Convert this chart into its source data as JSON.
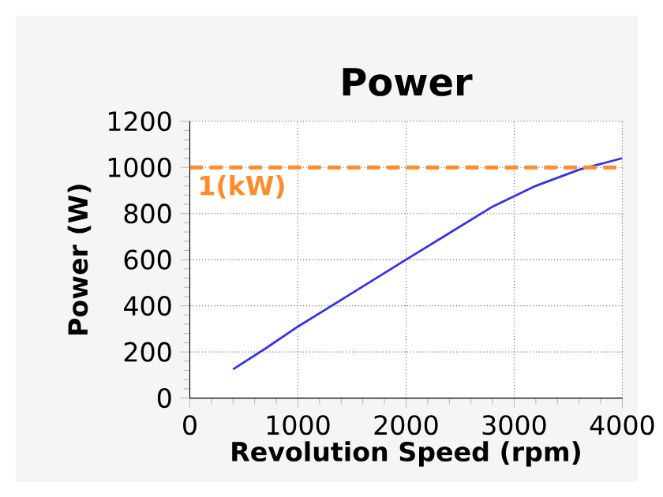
{
  "chart_data": {
    "type": "line",
    "title": "Power",
    "xlabel": "Revolution Speed (rpm)",
    "ylabel": "Power (W)",
    "x": [
      400,
      700,
      1000,
      1500,
      2000,
      2400,
      2800,
      3200,
      3600,
      4000
    ],
    "series": [
      {
        "color": "#3333ee",
        "values": [
          125,
          215,
          310,
          455,
          600,
          715,
          830,
          920,
          990,
          1040
        ]
      }
    ],
    "xlim": [
      0,
      4000
    ],
    "xticks": [
      0,
      1000,
      2000,
      3000,
      4000
    ],
    "ylim": [
      0,
      1200
    ],
    "yticks": [
      0,
      200,
      400,
      600,
      800,
      1000,
      1200
    ],
    "grid": true,
    "line_style": "solid",
    "marker": "none",
    "ref_lines": [
      {
        "axis": "y",
        "value": 1000,
        "label": "1(kW)",
        "color": "#ff8c2a",
        "line_style": "dashed"
      }
    ]
  }
}
